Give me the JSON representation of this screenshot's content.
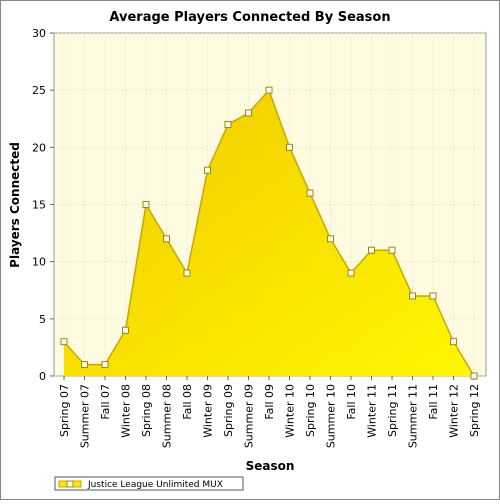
{
  "chart_data": {
    "type": "area",
    "title": "Average Players Connected By Season",
    "x_label": "Season",
    "y_label": "Players Connected",
    "categories": [
      "Spring 07",
      "Summer 07",
      "Fall 07",
      "Winter 08",
      "Spring 08",
      "Summer 08",
      "Fall 08",
      "Winter 09",
      "Spring 09",
      "Summer 09",
      "Fall 09",
      "Winter 10",
      "Spring 10",
      "Summer 10",
      "Fall 10",
      "Winter 11",
      "Spring 11",
      "Summer 11",
      "Fall 11",
      "Winter 12",
      "Spring 12"
    ],
    "series": [
      {
        "name": "Justice League Unlimited MUX",
        "color": "#ffe500",
        "values": [
          3,
          1,
          1,
          4,
          15,
          12,
          9,
          18,
          22,
          23,
          25,
          20,
          16,
          12,
          9,
          11,
          11,
          7,
          7,
          3,
          0
        ]
      }
    ],
    "ylim": [
      0,
      30
    ],
    "yticks": [
      0,
      5,
      10,
      15,
      20,
      25,
      30
    ],
    "grid": true
  }
}
